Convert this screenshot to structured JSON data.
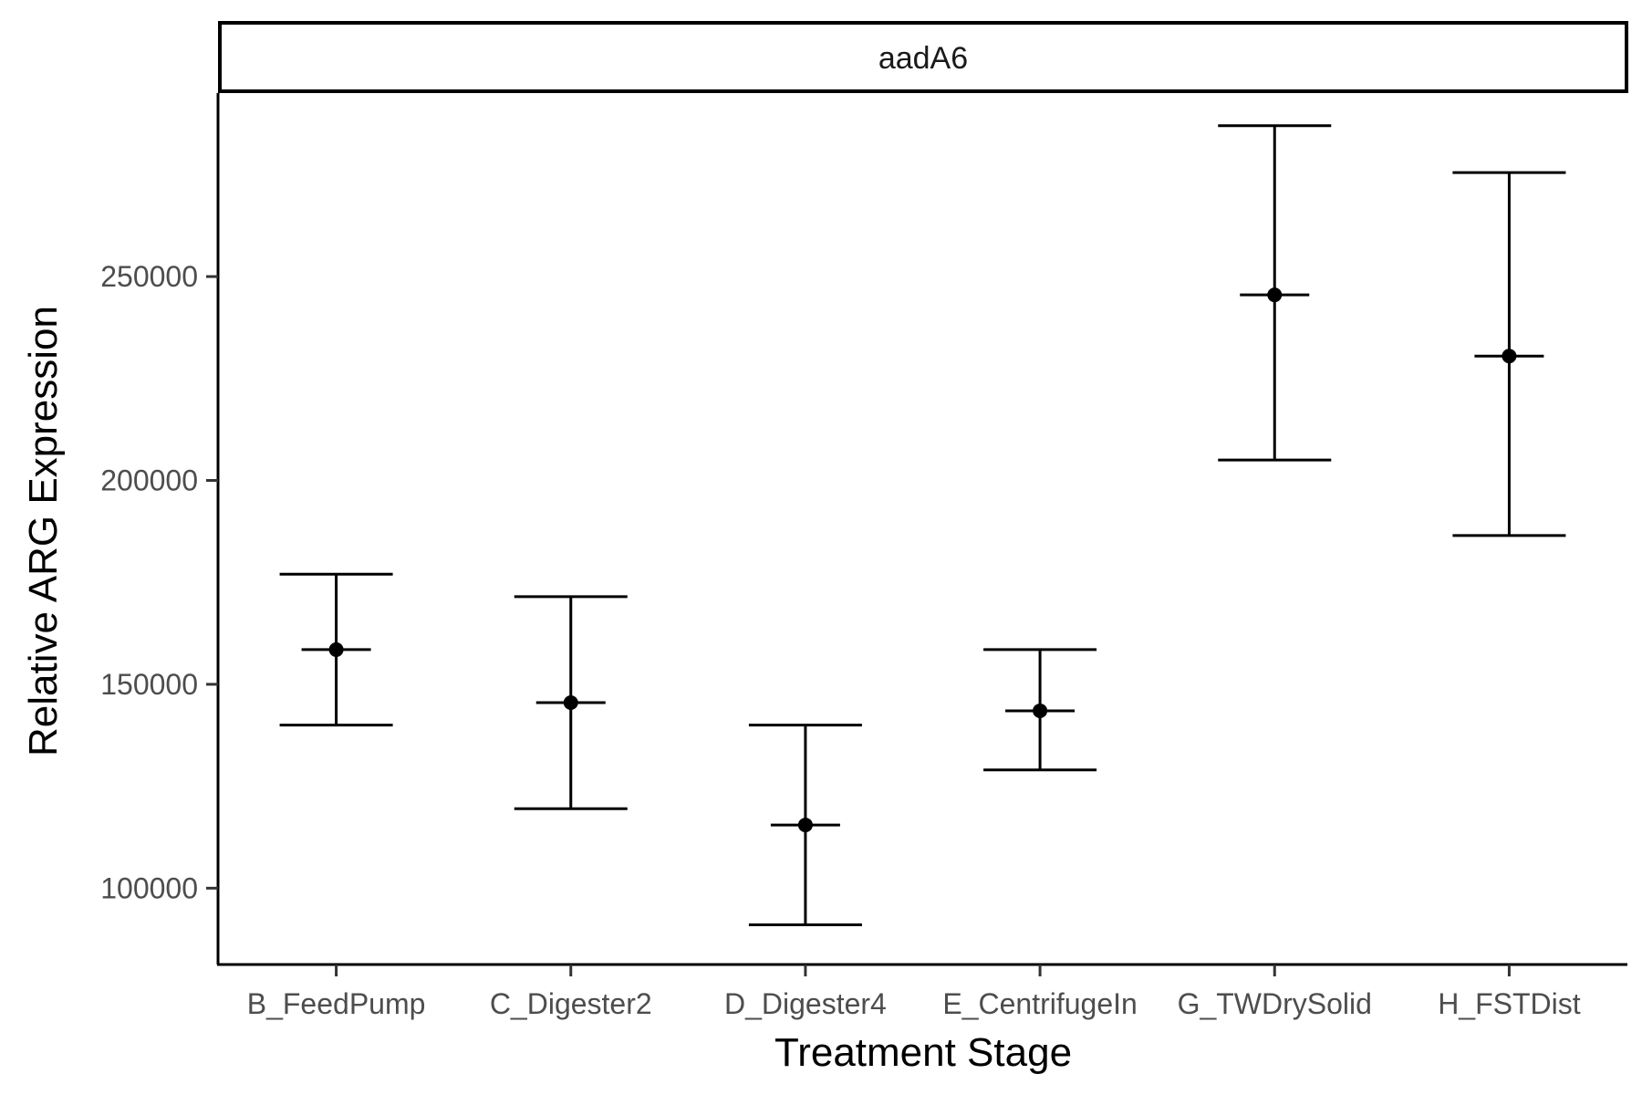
{
  "chart_data": {
    "type": "scatter",
    "facet_label": "aadA6",
    "xlabel": "Treatment Stage",
    "ylabel": "Relative ARG Expression",
    "categories": [
      "B_FeedPump",
      "C_Digester2",
      "D_Digester4",
      "E_CentrifugeIn",
      "G_TWDrySolid",
      "H_FSTDist"
    ],
    "points": [
      {
        "category": "B_FeedPump",
        "mean": 158500,
        "lower": 140000,
        "upper": 177000
      },
      {
        "category": "C_Digester2",
        "mean": 145500,
        "lower": 119500,
        "upper": 171500
      },
      {
        "category": "D_Digester4",
        "mean": 115500,
        "lower": 91000,
        "upper": 140000
      },
      {
        "category": "E_CentrifugeIn",
        "mean": 143500,
        "lower": 129000,
        "upper": 158500
      },
      {
        "category": "G_TWDrySolid",
        "mean": 245500,
        "lower": 205000,
        "upper": 287000
      },
      {
        "category": "H_FSTDist",
        "mean": 230500,
        "lower": 186500,
        "upper": 275500
      }
    ],
    "yticks": [
      "100000",
      "150000",
      "200000",
      "250000"
    ],
    "ytick_values": [
      100000,
      150000,
      200000,
      250000
    ],
    "ylim": [
      81500,
      295000
    ],
    "grid": false,
    "legend": "none"
  }
}
